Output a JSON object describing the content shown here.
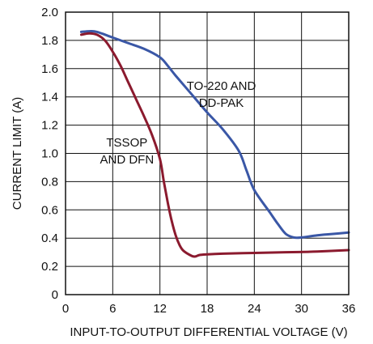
{
  "chart_data": {
    "type": "line",
    "xlabel": "INPUT-TO-OUTPUT DIFFERENTIAL VOLTAGE (V)",
    "ylabel": "CURRENT LIMIT (A)",
    "xlim": [
      0,
      36
    ],
    "ylim": [
      0,
      2.0
    ],
    "x_ticks": [
      0,
      6,
      12,
      18,
      24,
      30,
      36
    ],
    "x_tick_labels": [
      "0",
      "6",
      "12",
      "18",
      "24",
      "30",
      "36"
    ],
    "y_ticks": [
      0,
      0.2,
      0.4,
      0.6,
      0.8,
      1.0,
      1.2,
      1.4,
      1.6,
      1.8,
      2.0
    ],
    "y_tick_labels": [
      "0",
      "0.2",
      "0.4",
      "0.6",
      "0.8",
      "1.0",
      "1.2",
      "1.4",
      "1.6",
      "1.8",
      "2.0"
    ],
    "grid": true,
    "series": [
      {
        "name": "TO-220 AND DD-PAK",
        "color": "#3a57a6",
        "x": [
          2,
          3,
          4,
          6,
          8,
          10,
          12,
          13,
          14,
          16,
          18,
          20,
          22,
          23,
          24,
          26,
          27,
          28,
          29,
          30,
          32,
          34,
          36
        ],
        "y": [
          1.86,
          1.865,
          1.86,
          1.82,
          1.78,
          1.74,
          1.68,
          1.62,
          1.55,
          1.42,
          1.29,
          1.17,
          1.02,
          0.88,
          0.74,
          0.58,
          0.5,
          0.43,
          0.405,
          0.405,
          0.42,
          0.43,
          0.44
        ]
      },
      {
        "name": "TSSOP AND DFN",
        "color": "#8b1a2e",
        "x": [
          2,
          3,
          4,
          5,
          6,
          7,
          8,
          9,
          10,
          11,
          12,
          12.5,
          13,
          13.5,
          14,
          14.5,
          15,
          16,
          16.5,
          17,
          18,
          20,
          24,
          28,
          32,
          36
        ],
        "y": [
          1.84,
          1.85,
          1.84,
          1.8,
          1.72,
          1.62,
          1.5,
          1.38,
          1.26,
          1.13,
          0.96,
          0.8,
          0.65,
          0.52,
          0.42,
          0.35,
          0.31,
          0.275,
          0.27,
          0.28,
          0.285,
          0.29,
          0.295,
          0.3,
          0.305,
          0.315
        ]
      }
    ],
    "annotations": [
      {
        "lines": [
          "TO-220 AND",
          "DD-PAK"
        ],
        "x": 19.8,
        "y": 1.45
      },
      {
        "lines": [
          "TSSOP",
          "AND DFN"
        ],
        "x": 7.8,
        "y": 1.05
      }
    ]
  }
}
